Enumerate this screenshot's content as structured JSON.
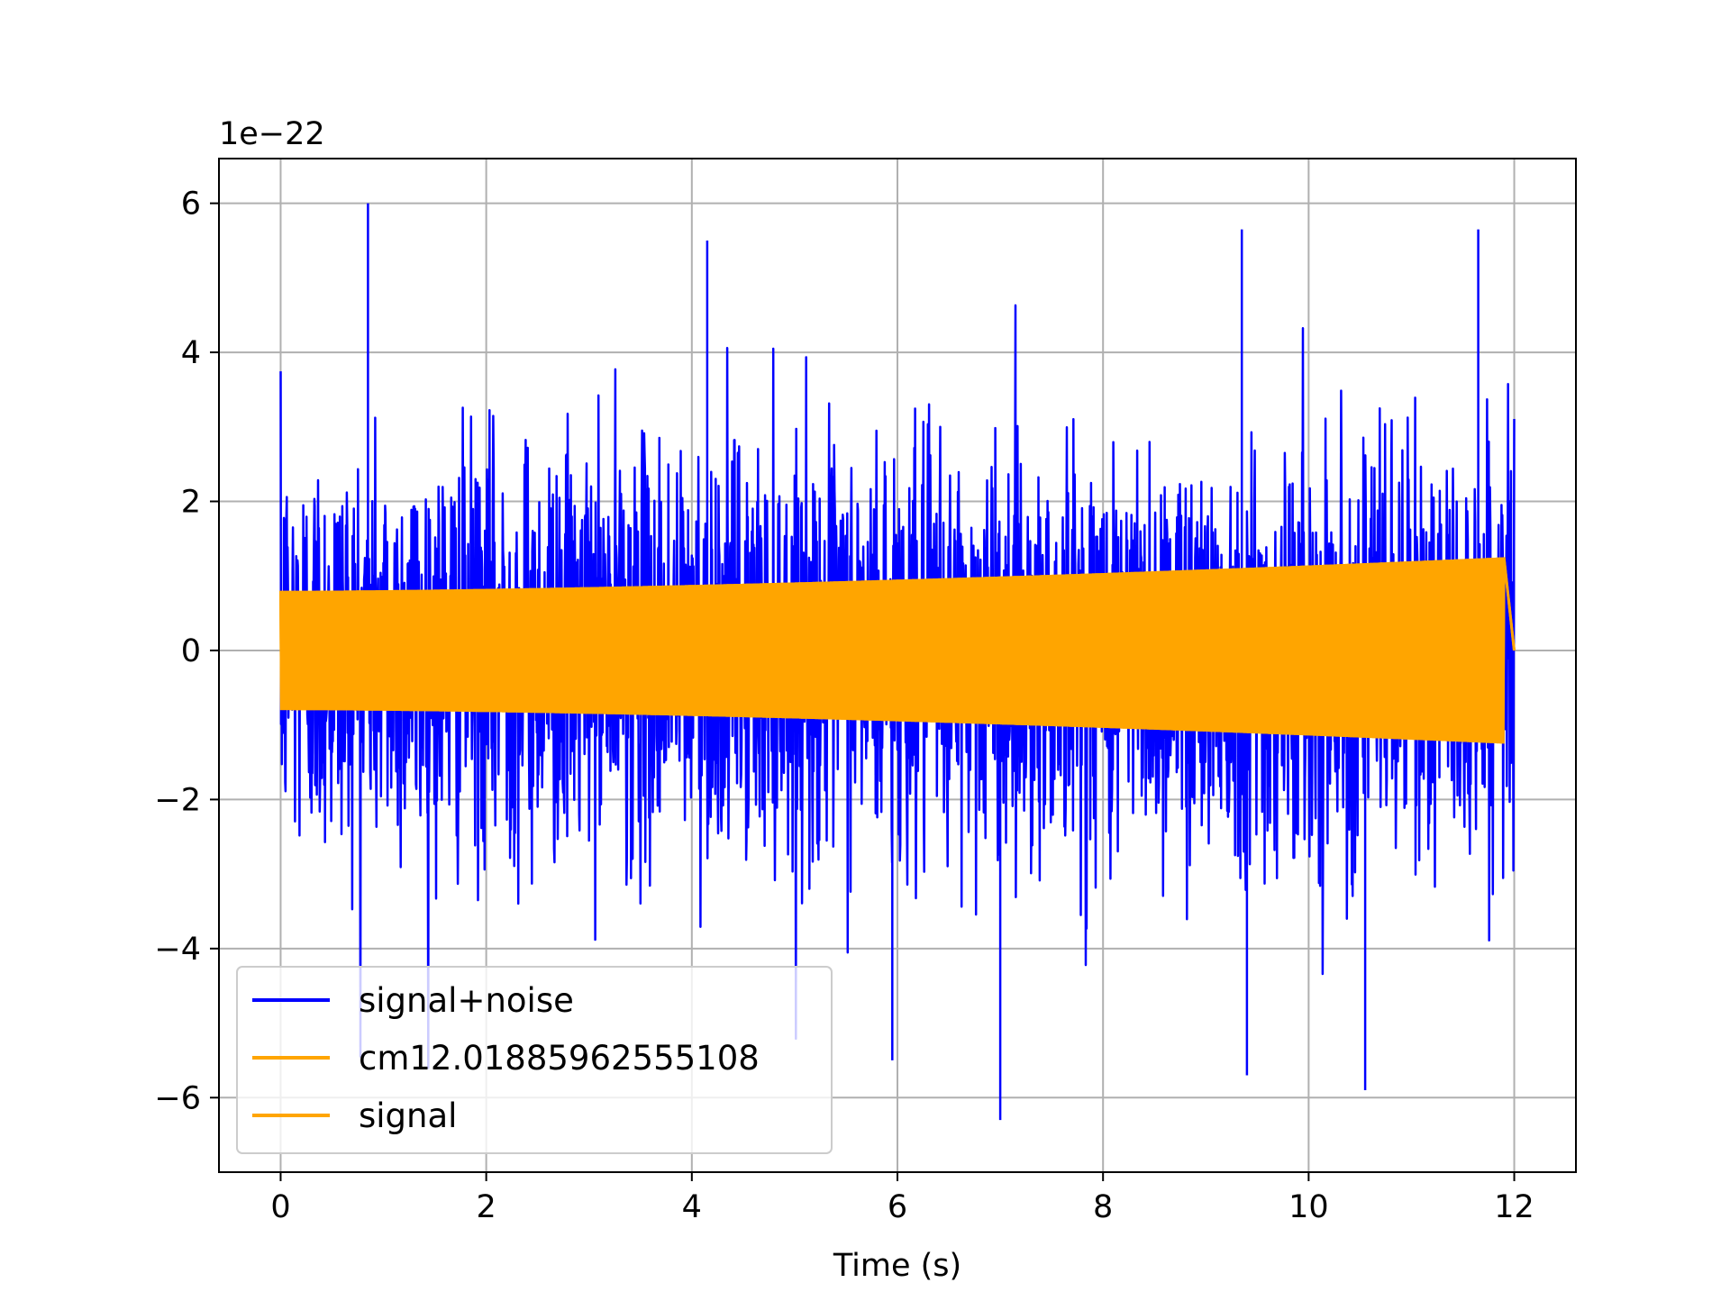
{
  "chart_data": {
    "type": "line",
    "title": "",
    "xlabel": "Time (s)",
    "ylabel": "",
    "y_offset_label": "1e−22",
    "y_scale_factor": 1e-22,
    "xlim": [
      -0.6,
      12.6
    ],
    "ylim": [
      -7.0,
      6.6
    ],
    "x_ticks": [
      0,
      2,
      4,
      6,
      8,
      10,
      12
    ],
    "x_tick_labels": [
      "0",
      "2",
      "4",
      "6",
      "8",
      "10",
      "12"
    ],
    "y_ticks": [
      -6,
      -4,
      -2,
      0,
      2,
      4,
      6
    ],
    "y_tick_labels": [
      "−6",
      "−4",
      "−2",
      "0",
      "2",
      "4",
      "6"
    ],
    "grid": true,
    "legend_position": "lower-left",
    "legend": [
      {
        "label": "signal+noise",
        "color": "#0000ff"
      },
      {
        "label": "cm12.01885962555108",
        "color": "#ffa500"
      },
      {
        "label": "signal",
        "color": "#ffa500"
      }
    ],
    "series": [
      {
        "name": "signal+noise",
        "color": "#0000ff",
        "description_of_shape": "dense noise oscillating roughly between -6 and +6 (x1e-22) over 0 to 12 s",
        "x_range": [
          0,
          12
        ],
        "envelope_approx": 3.0,
        "peaks": [
          {
            "x": 0.85,
            "y": 6.0
          },
          {
            "x": 4.15,
            "y": 5.5
          },
          {
            "x": 9.35,
            "y": 5.65
          },
          {
            "x": 11.65,
            "y": 5.65
          },
          {
            "x": 7.0,
            "y": -6.3
          },
          {
            "x": 10.55,
            "y": -5.9
          },
          {
            "x": 5.95,
            "y": -5.5
          },
          {
            "x": 9.4,
            "y": -5.7
          }
        ]
      },
      {
        "name": "cm12.01885962555108",
        "color": "#ffa500",
        "description_of_shape": "chirp-like oscillation with amplitude growing from about 0.8 at t=0 to about 1.25 at t=11.9, then zero",
        "x_range": [
          0,
          11.9
        ],
        "amplitude_start": 0.8,
        "amplitude_end": 1.25
      },
      {
        "name": "signal",
        "color": "#ffa500",
        "description_of_shape": "same as cm12 series, overlapping",
        "x_range": [
          0,
          11.9
        ],
        "amplitude_start": 0.8,
        "amplitude_end": 1.25
      }
    ]
  }
}
